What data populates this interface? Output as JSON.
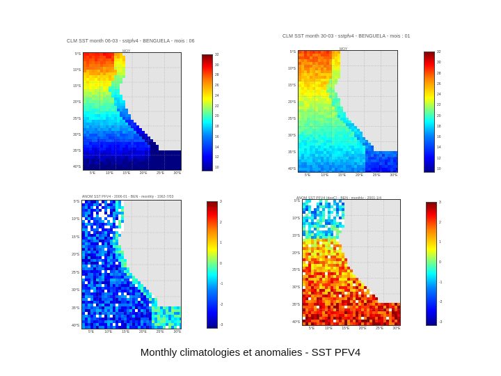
{
  "panels": [
    {
      "title": "CLM SST month 06-03 - sstpfv4 - BENGUELA - mois : 06",
      "subtitle": "MOY",
      "lat_labels": [
        "5°S",
        "10°S",
        "15°S",
        "20°S",
        "25°S",
        "30°S",
        "35°S",
        "40°S"
      ],
      "lon_labels": [
        "5°E",
        "10°E",
        "15°E",
        "20°E",
        "25°E",
        "30°E"
      ],
      "cbar_ticks": [
        "32",
        "30",
        "28",
        "26",
        "24",
        "22",
        "20",
        "18",
        "16",
        "14",
        "12",
        "10"
      ]
    },
    {
      "title": "CLM SST month 30-03 - sstpfv4 - BENGUELA - mois : 01",
      "subtitle": "MOY",
      "lat_labels": [
        "5°S",
        "10°S",
        "15°S",
        "20°S",
        "25°S",
        "30°S",
        "35°S",
        "40°S"
      ],
      "lon_labels": [
        "5°E",
        "10°E",
        "15°E",
        "20°E",
        "25°E",
        "30°E"
      ],
      "cbar_ticks": [
        "32",
        "30",
        "28",
        "26",
        "24",
        "22",
        "20",
        "18",
        "16",
        "14",
        "12",
        "10"
      ]
    },
    {
      "title": "ANOM SST PFV4 - 2006-01 - BEN - monthly - 1962-7/03",
      "subtitle": "",
      "lat_labels": [
        "5°S",
        "10°S",
        "15°S",
        "20°S",
        "25°S",
        "30°S",
        "35°S",
        "40°S"
      ],
      "lon_labels": [
        "5°E",
        "10°E",
        "15°E",
        "20°E",
        "25°E",
        "30°E"
      ],
      "cbar_ticks": [
        "3",
        "2",
        "1",
        "0",
        "-1",
        "-2",
        "-3"
      ]
    },
    {
      "title": "ANOM SST PFV4 (degC) - BEN - monthly - 2001-1/4",
      "subtitle": "",
      "lat_labels": [
        "5°S",
        "10°S",
        "15°S",
        "20°S",
        "25°S",
        "30°S",
        "35°S",
        "40°S"
      ],
      "lon_labels": [
        "5°E",
        "10°E",
        "15°E",
        "20°E",
        "25°E",
        "30°E"
      ],
      "cbar_ticks": [
        "3",
        "2",
        "1",
        "0",
        "-1",
        "-2",
        "-3"
      ]
    }
  ],
  "caption": "Monthly  climatologies et anomalies  -  SST PFV4",
  "colors": {
    "land": "#e4e4e4",
    "warm": "#ff8000",
    "cold": "#0000ff"
  }
}
